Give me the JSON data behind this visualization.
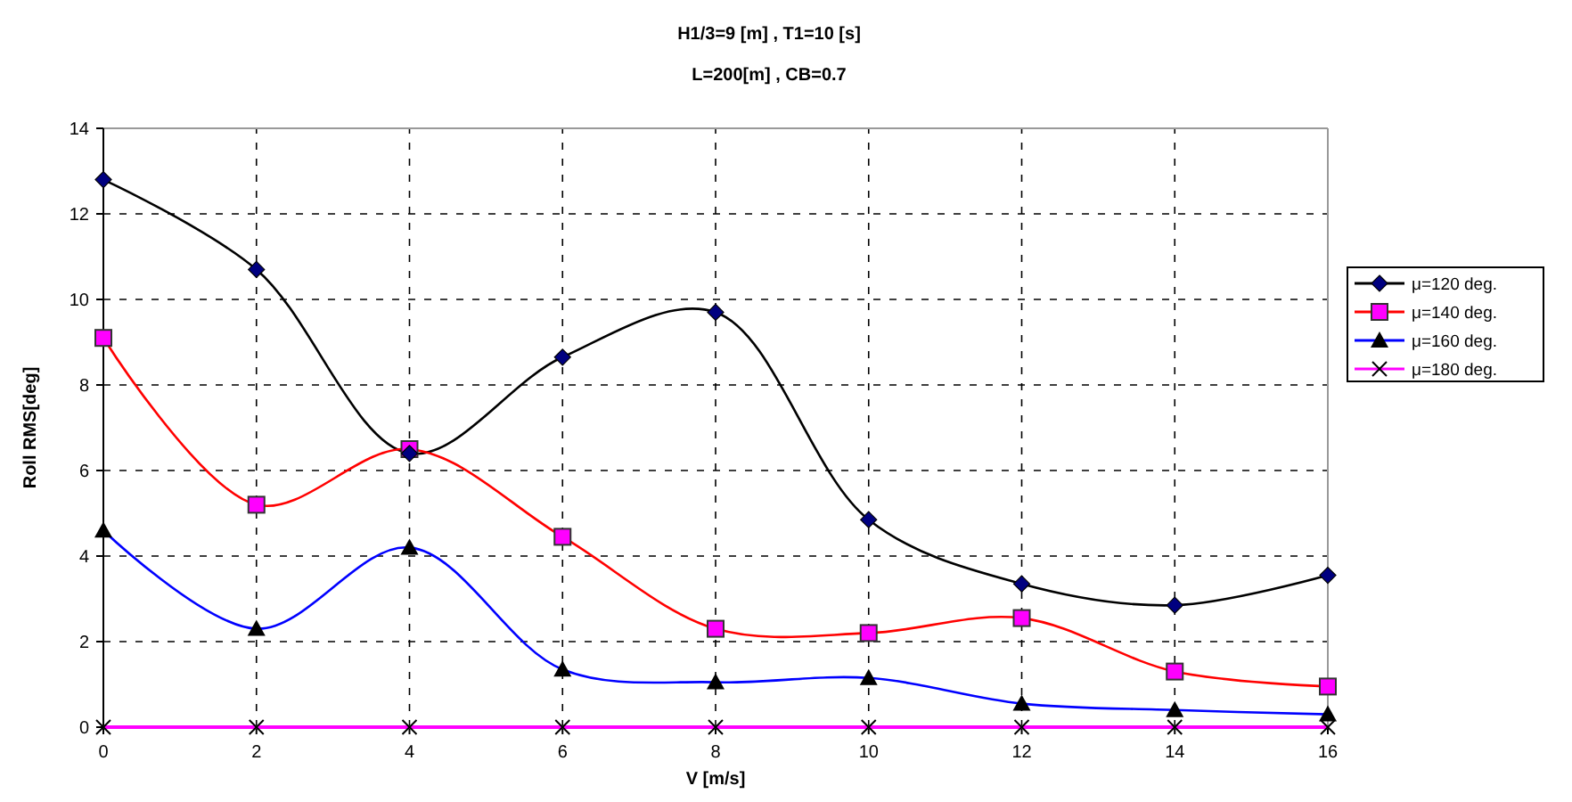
{
  "chart_data": {
    "type": "line",
    "title": "H1/3=9 [m] , T1=10 [s]",
    "subtitle": "L=200[m]  ,  CB=0.7",
    "xlabel": "V [m/s]",
    "ylabel": "Roll RMS[deg]",
    "x": [
      0,
      2,
      4,
      6,
      8,
      10,
      12,
      14,
      16
    ],
    "xlim": [
      0,
      16
    ],
    "xticks": [
      0,
      2,
      4,
      6,
      8,
      10,
      12,
      14,
      16
    ],
    "ylim": [
      0,
      14
    ],
    "yticks": [
      0,
      2,
      4,
      6,
      8,
      10,
      12,
      14
    ],
    "grid": true,
    "legend": "right",
    "series": [
      {
        "name": "μ=120 deg.",
        "color": "#000000",
        "marker": "diamond",
        "values": [
          12.8,
          10.7,
          6.4,
          8.65,
          9.7,
          4.85,
          3.35,
          2.85,
          3.55
        ]
      },
      {
        "name": "μ=140 deg.",
        "color": "#ff0000",
        "marker": "square",
        "values": [
          9.1,
          5.2,
          6.5,
          4.45,
          2.3,
          2.2,
          2.55,
          1.3,
          0.95
        ]
      },
      {
        "name": "μ=160 deg.",
        "color": "#0000ff",
        "marker": "triangle",
        "values": [
          4.6,
          2.3,
          4.2,
          1.35,
          1.05,
          1.15,
          0.55,
          0.4,
          0.3
        ]
      },
      {
        "name": "μ=180 deg.",
        "color": "#ff00ff",
        "marker": "cross",
        "values": [
          0,
          0,
          0,
          0,
          0,
          0,
          0,
          0,
          0
        ]
      }
    ]
  }
}
